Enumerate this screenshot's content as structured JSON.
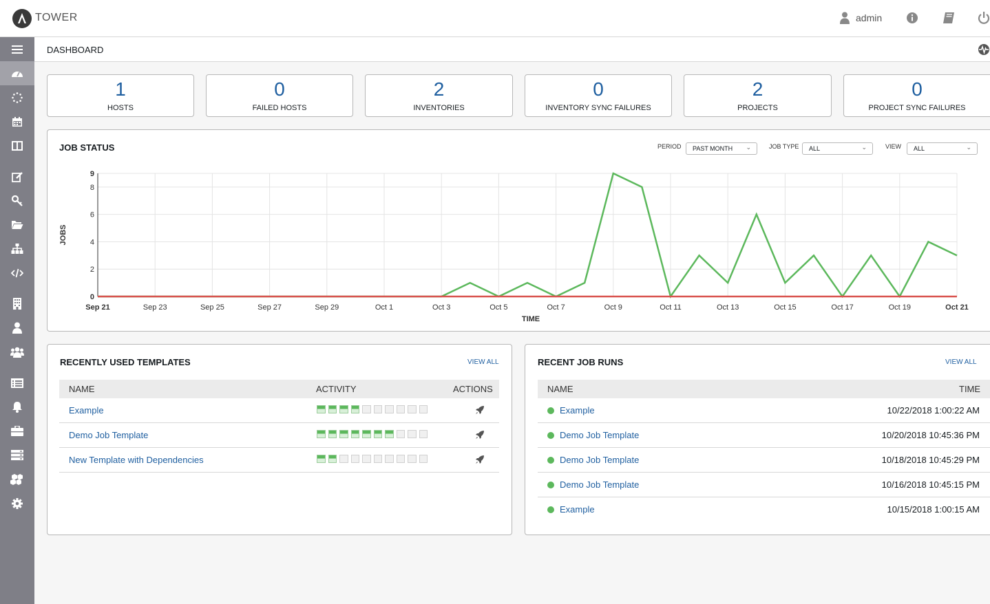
{
  "app": {
    "brand": "TOWER",
    "user": "admin"
  },
  "breadcrumb": "DASHBOARD",
  "counts": [
    {
      "value": "1",
      "label": "HOSTS"
    },
    {
      "value": "0",
      "label": "FAILED HOSTS"
    },
    {
      "value": "2",
      "label": "INVENTORIES"
    },
    {
      "value": "0",
      "label": "INVENTORY SYNC FAILURES"
    },
    {
      "value": "2",
      "label": "PROJECTS"
    },
    {
      "value": "0",
      "label": "PROJECT SYNC FAILURES"
    }
  ],
  "job_status": {
    "title": "JOB STATUS",
    "filters": {
      "period_label": "PERIOD",
      "period_value": "PAST MONTH",
      "job_type_label": "JOB TYPE",
      "job_type_value": "ALL",
      "view_label": "VIEW",
      "view_value": "ALL"
    }
  },
  "chart_data": {
    "type": "line",
    "xlabel": "TIME",
    "ylabel": "JOBS",
    "ylim": [
      0,
      9
    ],
    "yticks": [
      0,
      2,
      4,
      6,
      8,
      9
    ],
    "x": [
      "Sep 21",
      "Sep 22",
      "Sep 23",
      "Sep 24",
      "Sep 25",
      "Sep 26",
      "Sep 27",
      "Sep 28",
      "Sep 29",
      "Sep 30",
      "Oct 1",
      "Oct 2",
      "Oct 3",
      "Oct 4",
      "Oct 5",
      "Oct 6",
      "Oct 7",
      "Oct 8",
      "Oct 9",
      "Oct 10",
      "Oct 11",
      "Oct 12",
      "Oct 13",
      "Oct 14",
      "Oct 15",
      "Oct 16",
      "Oct 17",
      "Oct 18",
      "Oct 19",
      "Oct 20",
      "Oct 21"
    ],
    "xtick_labels": [
      "Sep 21",
      "Sep 23",
      "Sep 25",
      "Sep 27",
      "Sep 29",
      "Oct 1",
      "Oct 3",
      "Oct 5",
      "Oct 7",
      "Oct 9",
      "Oct 11",
      "Oct 13",
      "Oct 15",
      "Oct 17",
      "Oct 19",
      "Oct 21"
    ],
    "grid": true,
    "series": [
      {
        "color": "#5cb85c",
        "values": [
          0,
          0,
          0,
          0,
          0,
          0,
          0,
          0,
          0,
          0,
          0,
          0,
          0,
          1,
          0,
          1,
          0,
          1,
          9,
          8,
          0,
          3,
          1,
          6,
          1,
          3,
          0,
          3,
          0,
          4,
          3
        ]
      },
      {
        "color": "#d9534f",
        "values": [
          0,
          0,
          0,
          0,
          0,
          0,
          0,
          0,
          0,
          0,
          0,
          0,
          0,
          0,
          0,
          0,
          0,
          0,
          0,
          0,
          0,
          0,
          0,
          0,
          0,
          0,
          0,
          0,
          0,
          0,
          0
        ]
      }
    ]
  },
  "templates": {
    "title": "RECENTLY USED TEMPLATES",
    "view_all": "VIEW ALL",
    "headers": {
      "name": "NAME",
      "activity": "ACTIVITY",
      "actions": "ACTIONS"
    },
    "rows": [
      {
        "name": "Example",
        "successes": 4
      },
      {
        "name": "Demo Job Template",
        "successes": 7
      },
      {
        "name": "New Template with Dependencies",
        "successes": 2
      }
    ]
  },
  "job_runs": {
    "title": "RECENT JOB RUNS",
    "view_all": "VIEW ALL",
    "headers": {
      "name": "NAME",
      "time": "TIME"
    },
    "rows": [
      {
        "name": "Example",
        "time": "10/22/2018 1:00:22 AM"
      },
      {
        "name": "Demo Job Template",
        "time": "10/20/2018 10:45:36 PM"
      },
      {
        "name": "Demo Job Template",
        "time": "10/18/2018 10:45:29 PM"
      },
      {
        "name": "Demo Job Template",
        "time": "10/16/2018 10:45:15 PM"
      },
      {
        "name": "Example",
        "time": "10/15/2018 1:00:15 AM"
      }
    ]
  }
}
